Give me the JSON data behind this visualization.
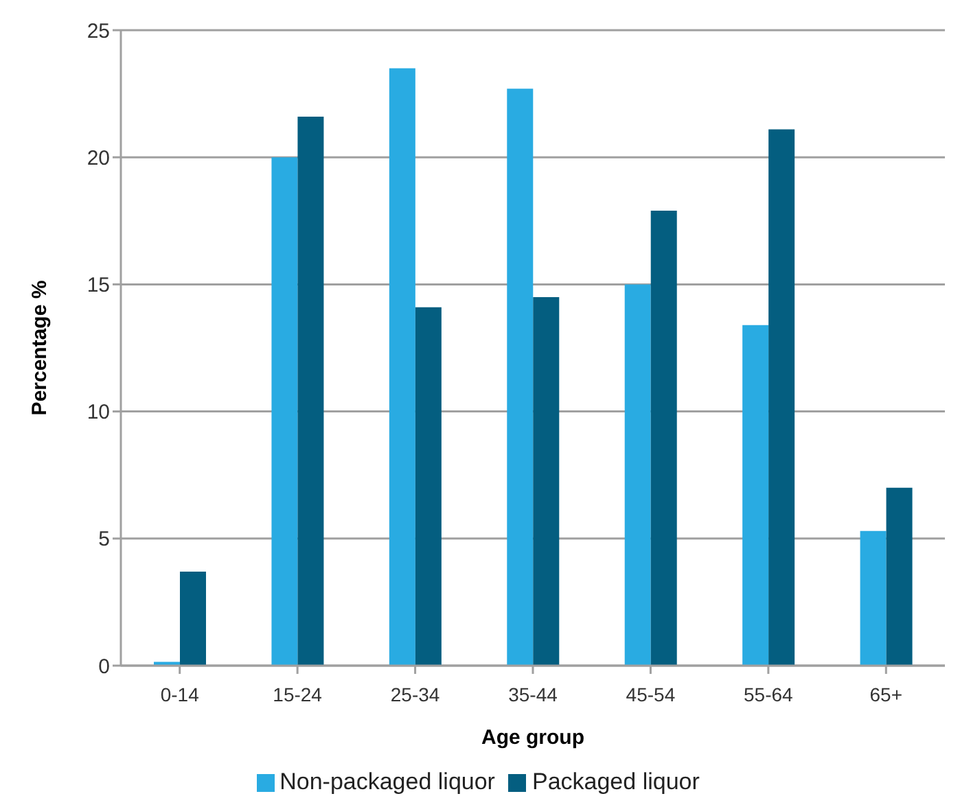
{
  "chart_data": {
    "type": "bar",
    "xlabel": "Age group",
    "ylabel": "Percentage %",
    "categories": [
      "0-14",
      "15-24",
      "25-34",
      "35-44",
      "45-54",
      "55-64",
      "65+"
    ],
    "series": [
      {
        "name": "Non-packaged liquor",
        "color": "#29abe2",
        "values": [
          0.15,
          20.0,
          23.5,
          22.7,
          15.0,
          13.4,
          5.3
        ]
      },
      {
        "name": "Packaged liquor",
        "color": "#045e80",
        "values": [
          3.7,
          21.6,
          14.1,
          14.5,
          17.9,
          21.1,
          7.0
        ]
      }
    ],
    "ylim": [
      0,
      25
    ],
    "yticks": [
      0,
      5,
      10,
      15,
      20,
      25
    ],
    "grid": "y",
    "legend": "bottom"
  }
}
